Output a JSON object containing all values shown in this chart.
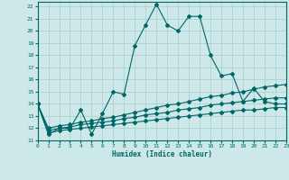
{
  "title": "",
  "xlabel": "Humidex (Indice chaleur)",
  "bg_color": "#cce8e8",
  "grid_color": "#aacccc",
  "line_color": "#006666",
  "xlim": [
    0,
    23
  ],
  "ylim": [
    11,
    22.4
  ],
  "xticks": [
    0,
    1,
    2,
    3,
    4,
    5,
    6,
    7,
    8,
    9,
    10,
    11,
    12,
    13,
    14,
    15,
    16,
    17,
    18,
    19,
    20,
    21,
    22,
    23
  ],
  "yticks": [
    11,
    12,
    13,
    14,
    15,
    16,
    17,
    18,
    19,
    20,
    21,
    22
  ],
  "line1_x": [
    0,
    1,
    2,
    3,
    4,
    5,
    6,
    7,
    8,
    9,
    10,
    11,
    12,
    13,
    14,
    15,
    16,
    17,
    18,
    19,
    20,
    21,
    22,
    23
  ],
  "line1_y": [
    14.0,
    11.5,
    12.0,
    12.0,
    13.5,
    11.5,
    13.2,
    15.0,
    14.8,
    18.8,
    20.5,
    22.2,
    20.5,
    20.0,
    21.2,
    21.2,
    18.0,
    16.3,
    16.5,
    14.2,
    15.3,
    14.2,
    14.0,
    14.0
  ],
  "line2_x": [
    0,
    1,
    2,
    3,
    4,
    5,
    6,
    7,
    8,
    9,
    10,
    11,
    12,
    13,
    14,
    15,
    16,
    17,
    18,
    19,
    20,
    21,
    22,
    23
  ],
  "line2_y": [
    14.0,
    12.0,
    12.2,
    12.3,
    12.5,
    12.6,
    12.8,
    12.9,
    13.1,
    13.3,
    13.5,
    13.7,
    13.9,
    14.0,
    14.2,
    14.4,
    14.6,
    14.7,
    14.9,
    15.0,
    15.2,
    15.4,
    15.5,
    15.6
  ],
  "line3_x": [
    0,
    1,
    2,
    3,
    4,
    5,
    6,
    7,
    8,
    9,
    10,
    11,
    12,
    13,
    14,
    15,
    16,
    17,
    18,
    19,
    20,
    21,
    22,
    23
  ],
  "line3_y": [
    14.0,
    11.8,
    12.0,
    12.1,
    12.3,
    12.4,
    12.5,
    12.6,
    12.8,
    12.9,
    13.1,
    13.2,
    13.3,
    13.5,
    13.6,
    13.7,
    13.9,
    14.0,
    14.1,
    14.2,
    14.3,
    14.4,
    14.5,
    14.5
  ],
  "line4_x": [
    0,
    1,
    2,
    3,
    4,
    5,
    6,
    7,
    8,
    9,
    10,
    11,
    12,
    13,
    14,
    15,
    16,
    17,
    18,
    19,
    20,
    21,
    22,
    23
  ],
  "line4_y": [
    14.0,
    11.6,
    11.8,
    11.9,
    12.0,
    12.1,
    12.2,
    12.3,
    12.4,
    12.5,
    12.6,
    12.7,
    12.8,
    12.9,
    13.0,
    13.1,
    13.2,
    13.3,
    13.4,
    13.5,
    13.5,
    13.6,
    13.7,
    13.7
  ]
}
